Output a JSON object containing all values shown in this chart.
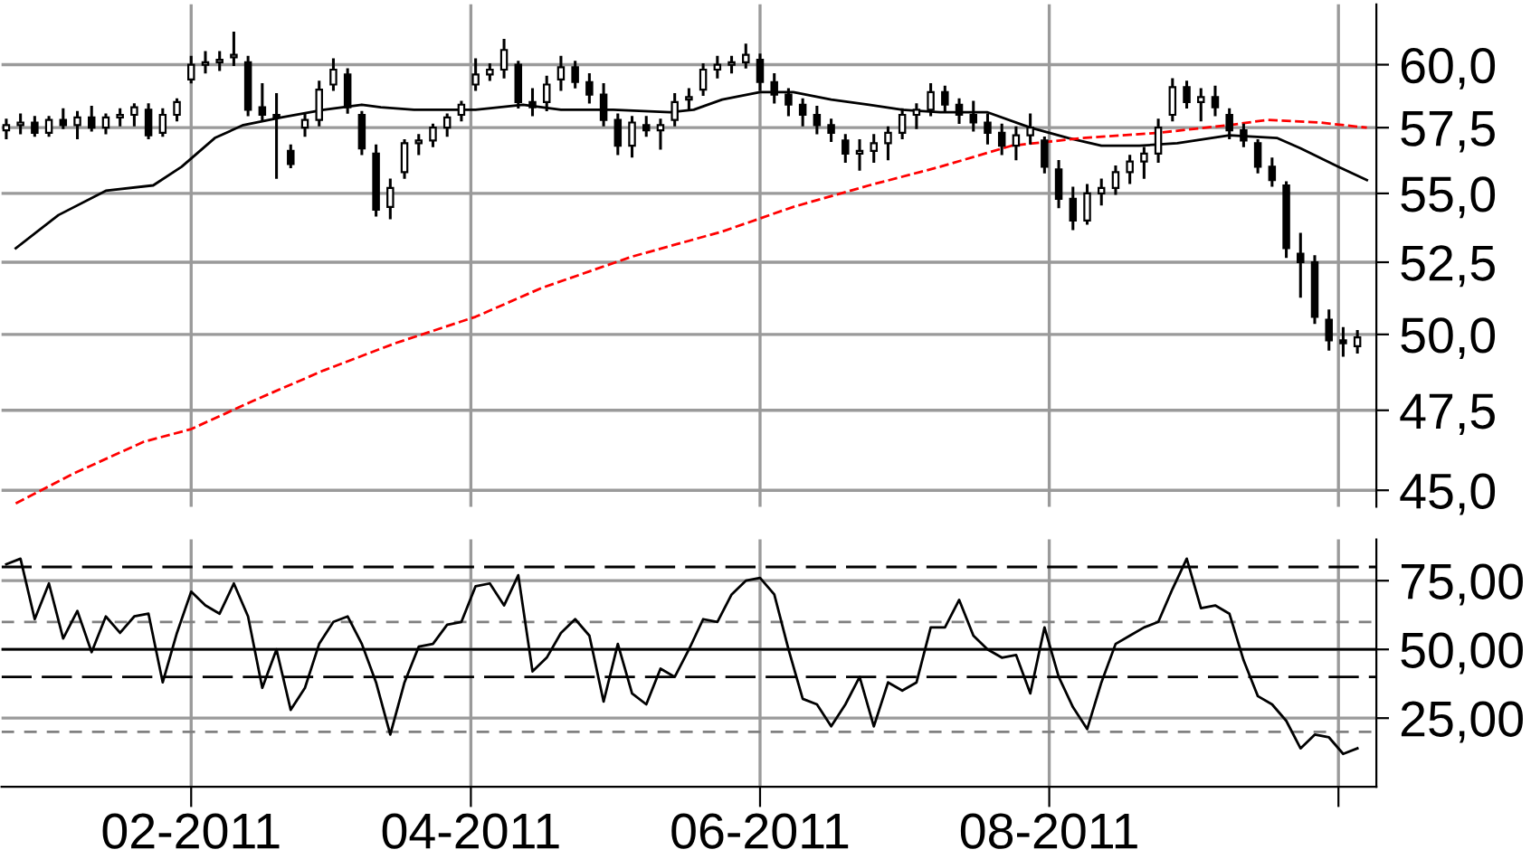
{
  "chart_data": [
    {
      "type": "candlestick",
      "log": true,
      "grid": true,
      "tick_labels": "y",
      "color": "#000000",
      "xlim": [
        "2010-12-23",
        "2011-10-09"
      ],
      "xticks": [
        {
          "value": "2011-02-01",
          "label": null
        },
        {
          "value": "2011-04-01",
          "label": null
        },
        {
          "value": "2011-06-01",
          "label": null
        },
        {
          "value": "2011-08-01",
          "label": null
        },
        {
          "value": "2011-10-01",
          "label": null
        }
      ],
      "ylim": [
        44.5,
        62.5
      ],
      "yticks": [
        {
          "value": 45,
          "label": "45,0"
        },
        {
          "value": 47.5,
          "label": "47,5"
        },
        {
          "value": 50,
          "label": "50,0"
        },
        {
          "value": 52.5,
          "label": "52,5"
        },
        {
          "value": 55,
          "label": "55,0"
        },
        {
          "value": 57.5,
          "label": "57,5"
        },
        {
          "value": 60,
          "label": "60,0"
        }
      ],
      "x": [
        "2010-12-24",
        "2010-12-27",
        "2010-12-30",
        "2011-01-02",
        "2011-01-05",
        "2011-01-08",
        "2011-01-11",
        "2011-01-14",
        "2011-01-17",
        "2011-01-20",
        "2011-01-23",
        "2011-01-26",
        "2011-01-29",
        "2011-02-01",
        "2011-02-04",
        "2011-02-07",
        "2011-02-10",
        "2011-02-13",
        "2011-02-16",
        "2011-02-19",
        "2011-02-22",
        "2011-02-25",
        "2011-02-28",
        "2011-03-03",
        "2011-03-06",
        "2011-03-09",
        "2011-03-12",
        "2011-03-15",
        "2011-03-18",
        "2011-03-21",
        "2011-03-24",
        "2011-03-27",
        "2011-03-30",
        "2011-04-02",
        "2011-04-05",
        "2011-04-08",
        "2011-04-11",
        "2011-04-14",
        "2011-04-17",
        "2011-04-20",
        "2011-04-23",
        "2011-04-26",
        "2011-04-29",
        "2011-05-02",
        "2011-05-05",
        "2011-05-08",
        "2011-05-11",
        "2011-05-14",
        "2011-05-17",
        "2011-05-20",
        "2011-05-23",
        "2011-05-26",
        "2011-05-29",
        "2011-06-01",
        "2011-06-04",
        "2011-06-07",
        "2011-06-10",
        "2011-06-13",
        "2011-06-16",
        "2011-06-19",
        "2011-06-22",
        "2011-06-25",
        "2011-06-28",
        "2011-07-01",
        "2011-07-04",
        "2011-07-07",
        "2011-07-10",
        "2011-07-13",
        "2011-07-16",
        "2011-07-19",
        "2011-07-22",
        "2011-07-25",
        "2011-07-28",
        "2011-07-31",
        "2011-08-03",
        "2011-08-06",
        "2011-08-09",
        "2011-08-12",
        "2011-08-15",
        "2011-08-18",
        "2011-08-21",
        "2011-08-24",
        "2011-08-27",
        "2011-08-30",
        "2011-09-02",
        "2011-09-05",
        "2011-09-08",
        "2011-09-11",
        "2011-09-14",
        "2011-09-17",
        "2011-09-20",
        "2011-09-23",
        "2011-09-26",
        "2011-09-29",
        "2011-10-02",
        "2011-10-05"
      ],
      "ohlc": [
        [
          57.4,
          57.8,
          57.1,
          57.6
        ],
        [
          57.6,
          58.0,
          57.3,
          57.7
        ],
        [
          57.7,
          57.9,
          57.2,
          57.3
        ],
        [
          57.3,
          57.9,
          57.2,
          57.8
        ],
        [
          57.8,
          58.2,
          57.5,
          57.6
        ],
        [
          57.6,
          58.1,
          57.1,
          57.9
        ],
        [
          57.9,
          58.3,
          57.4,
          57.5
        ],
        [
          57.5,
          58.0,
          57.3,
          57.9
        ],
        [
          57.9,
          58.2,
          57.6,
          58.0
        ],
        [
          58.0,
          58.4,
          57.6,
          58.3
        ],
        [
          58.2,
          58.4,
          57.1,
          57.2
        ],
        [
          57.3,
          58.2,
          57.2,
          58.0
        ],
        [
          58.0,
          58.6,
          57.8,
          58.5
        ],
        [
          59.4,
          60.3,
          59.3,
          60.0
        ],
        [
          60.0,
          60.5,
          59.7,
          60.1
        ],
        [
          60.1,
          60.5,
          59.8,
          60.2
        ],
        [
          60.3,
          61.3,
          60.0,
          60.4
        ],
        [
          60.1,
          60.3,
          58.0,
          58.2
        ],
        [
          58.3,
          59.2,
          57.8,
          58.0
        ],
        [
          58.0,
          58.8,
          55.6,
          57.9
        ],
        [
          56.6,
          56.8,
          56.0,
          56.1
        ],
        [
          57.5,
          58.0,
          57.2,
          57.8
        ],
        [
          57.8,
          59.3,
          57.6,
          59.0
        ],
        [
          59.2,
          60.2,
          59.0,
          59.8
        ],
        [
          59.6,
          59.8,
          58.1,
          58.3
        ],
        [
          58.0,
          58.1,
          56.5,
          56.7
        ],
        [
          56.5,
          56.8,
          54.2,
          54.4
        ],
        [
          54.5,
          55.5,
          54.1,
          55.2
        ],
        [
          55.8,
          57.0,
          55.6,
          56.9
        ],
        [
          56.9,
          57.2,
          56.5,
          57.0
        ],
        [
          57.0,
          57.6,
          56.8,
          57.5
        ],
        [
          57.5,
          58.0,
          57.2,
          57.9
        ],
        [
          58.0,
          58.5,
          57.8,
          58.4
        ],
        [
          59.2,
          60.2,
          59.0,
          59.6
        ],
        [
          59.6,
          60.0,
          59.4,
          59.8
        ],
        [
          59.8,
          61.0,
          59.5,
          60.6
        ],
        [
          60.0,
          60.1,
          58.3,
          58.5
        ],
        [
          58.5,
          59.0,
          58.0,
          58.3
        ],
        [
          58.5,
          59.5,
          58.2,
          59.2
        ],
        [
          59.4,
          60.3,
          59.0,
          59.9
        ],
        [
          59.9,
          60.1,
          59.1,
          59.3
        ],
        [
          59.3,
          59.6,
          58.5,
          58.8
        ],
        [
          58.8,
          59.2,
          57.6,
          57.8
        ],
        [
          57.8,
          58.0,
          56.5,
          56.8
        ],
        [
          56.8,
          57.9,
          56.4,
          57.7
        ],
        [
          57.6,
          57.9,
          57.2,
          57.4
        ],
        [
          57.4,
          57.8,
          56.7,
          57.6
        ],
        [
          57.8,
          58.8,
          57.6,
          58.5
        ],
        [
          58.6,
          59.0,
          58.2,
          58.7
        ],
        [
          59.0,
          60.0,
          58.8,
          59.8
        ],
        [
          59.8,
          60.3,
          59.5,
          60.0
        ],
        [
          60.0,
          60.3,
          59.7,
          60.1
        ],
        [
          60.1,
          60.8,
          59.9,
          60.4
        ],
        [
          60.2,
          60.4,
          59.0,
          59.3
        ],
        [
          59.3,
          59.6,
          58.5,
          58.8
        ],
        [
          58.8,
          59.0,
          58.0,
          58.4
        ],
        [
          58.4,
          58.6,
          57.6,
          58.0
        ],
        [
          58.0,
          58.3,
          57.3,
          57.6
        ],
        [
          57.6,
          57.8,
          57.0,
          57.3
        ],
        [
          57.0,
          57.2,
          56.2,
          56.5
        ],
        [
          56.5,
          57.0,
          55.9,
          56.6
        ],
        [
          56.6,
          57.2,
          56.2,
          56.9
        ],
        [
          56.9,
          57.5,
          56.3,
          57.3
        ],
        [
          57.3,
          58.2,
          57.1,
          58.0
        ],
        [
          58.0,
          58.4,
          57.5,
          58.2
        ],
        [
          58.2,
          59.2,
          58.0,
          58.9
        ],
        [
          58.9,
          59.1,
          58.2,
          58.4
        ],
        [
          58.4,
          58.6,
          57.7,
          58.0
        ],
        [
          58.0,
          58.5,
          57.4,
          57.7
        ],
        [
          57.7,
          58.0,
          56.9,
          57.3
        ],
        [
          57.3,
          57.6,
          56.5,
          56.8
        ],
        [
          56.8,
          57.5,
          56.3,
          57.2
        ],
        [
          57.2,
          58.0,
          56.9,
          57.5
        ],
        [
          57.0,
          57.1,
          55.8,
          56.0
        ],
        [
          55.9,
          56.2,
          54.5,
          54.8
        ],
        [
          54.8,
          55.2,
          53.7,
          54.0
        ],
        [
          54.0,
          55.3,
          53.9,
          55.0
        ],
        [
          55.0,
          55.5,
          54.6,
          55.2
        ],
        [
          55.2,
          56.0,
          55.0,
          55.8
        ],
        [
          55.8,
          56.4,
          55.4,
          56.2
        ],
        [
          56.2,
          56.7,
          55.6,
          56.5
        ],
        [
          56.5,
          57.8,
          56.2,
          57.5
        ],
        [
          58.0,
          59.4,
          57.8,
          59.1
        ],
        [
          59.1,
          59.3,
          58.3,
          58.5
        ],
        [
          58.5,
          59.0,
          57.8,
          58.7
        ],
        [
          58.7,
          59.1,
          58.0,
          58.3
        ],
        [
          58.0,
          58.2,
          57.1,
          57.4
        ],
        [
          57.4,
          57.6,
          56.8,
          57.0
        ],
        [
          56.9,
          57.0,
          55.8,
          56.0
        ],
        [
          56.0,
          56.3,
          55.3,
          55.5
        ],
        [
          55.3,
          55.4,
          52.7,
          53.0
        ],
        [
          52.8,
          53.5,
          51.3,
          52.5
        ],
        [
          52.5,
          52.7,
          50.4,
          50.6
        ],
        [
          50.5,
          50.8,
          49.5,
          49.8
        ],
        [
          49.8,
          50.2,
          49.3,
          49.7
        ],
        [
          49.6,
          50.1,
          49.4,
          49.9
        ]
      ],
      "series": [
        {
          "type": "line",
          "color": "#000000",
          "line_style": "solid",
          "x": [
            "2010-12-26",
            "2011-01-04",
            "2011-01-14",
            "2011-01-24",
            "2011-01-30",
            "2011-02-06",
            "2011-02-12",
            "2011-02-20",
            "2011-03-01",
            "2011-03-09",
            "2011-03-13",
            "2011-03-20",
            "2011-04-02",
            "2011-04-12",
            "2011-04-20",
            "2011-05-01",
            "2011-05-13",
            "2011-05-18",
            "2011-05-24",
            "2011-06-01",
            "2011-06-08",
            "2011-06-16",
            "2011-06-24",
            "2011-07-01",
            "2011-07-09",
            "2011-07-19",
            "2011-07-28",
            "2011-08-05",
            "2011-08-12",
            "2011-08-20",
            "2011-08-28",
            "2011-09-08",
            "2011-09-18",
            "2011-09-23",
            "2011-10-01",
            "2011-10-07"
          ],
          "values": [
            53.0,
            54.2,
            55.1,
            55.3,
            56.0,
            57.1,
            57.6,
            57.9,
            58.2,
            58.4,
            58.3,
            58.2,
            58.2,
            58.4,
            58.2,
            58.2,
            58.1,
            58.2,
            58.6,
            58.9,
            58.9,
            58.6,
            58.4,
            58.2,
            58.1,
            58.1,
            57.5,
            57.1,
            56.8,
            56.8,
            56.9,
            57.2,
            57.1,
            56.7,
            56.0,
            55.5
          ]
        },
        {
          "type": "line",
          "color": "#ff0000",
          "line_style": "dashed",
          "x": [
            "2010-12-26",
            "2011-01-07",
            "2011-01-22",
            "2011-02-01",
            "2011-02-14",
            "2011-03-01",
            "2011-03-16",
            "2011-04-02",
            "2011-04-16",
            "2011-05-05",
            "2011-05-24",
            "2011-06-08",
            "2011-06-24",
            "2011-07-09",
            "2011-07-24",
            "2011-08-08",
            "2011-08-24",
            "2011-09-08",
            "2011-09-16",
            "2011-09-27",
            "2011-10-07"
          ],
          "values": [
            44.6,
            45.5,
            46.5,
            46.9,
            47.8,
            48.8,
            49.7,
            50.6,
            51.6,
            52.7,
            53.6,
            54.5,
            55.3,
            56.0,
            56.8,
            57.1,
            57.3,
            57.6,
            57.8,
            57.7,
            57.5
          ]
        }
      ]
    },
    {
      "type": "line",
      "grid": true,
      "color": "#000000",
      "xlim": [
        "2010-12-23",
        "2011-10-09"
      ],
      "xticks": [
        {
          "value": "2011-02-01",
          "label": "02-2011"
        },
        {
          "value": "2011-04-01",
          "label": "04-2011"
        },
        {
          "value": "2011-06-01",
          "label": "06-2011"
        },
        {
          "value": "2011-08-01",
          "label": "08-2011"
        },
        {
          "value": "2011-10-01",
          "label": null
        }
      ],
      "ylim": [
        0,
        90
      ],
      "yticks": [
        {
          "value": 25,
          "label": "25,00"
        },
        {
          "value": 50,
          "label": "50,00"
        },
        {
          "value": 75,
          "label": "75,00"
        }
      ],
      "ref_lines": [
        {
          "axis": "y",
          "value": 80,
          "color": "#000000",
          "line_style": "dashed"
        },
        {
          "axis": "y",
          "value": 60,
          "color": "#808080",
          "line_style": "dashed"
        },
        {
          "axis": "y",
          "value": 50,
          "color": "#000000",
          "line_style": "solid"
        },
        {
          "axis": "y",
          "value": 40,
          "color": "#000000",
          "line_style": "dashed"
        },
        {
          "axis": "y",
          "value": 20,
          "color": "#808080",
          "line_style": "dashed"
        }
      ],
      "x": [
        "2010-12-24",
        "2010-12-27",
        "2010-12-30",
        "2011-01-02",
        "2011-01-05",
        "2011-01-08",
        "2011-01-11",
        "2011-01-14",
        "2011-01-17",
        "2011-01-20",
        "2011-01-23",
        "2011-01-26",
        "2011-01-29",
        "2011-02-01",
        "2011-02-04",
        "2011-02-07",
        "2011-02-10",
        "2011-02-13",
        "2011-02-16",
        "2011-02-19",
        "2011-02-22",
        "2011-02-25",
        "2011-02-28",
        "2011-03-03",
        "2011-03-06",
        "2011-03-09",
        "2011-03-12",
        "2011-03-15",
        "2011-03-18",
        "2011-03-21",
        "2011-03-24",
        "2011-03-27",
        "2011-03-30",
        "2011-04-02",
        "2011-04-05",
        "2011-04-08",
        "2011-04-11",
        "2011-04-14",
        "2011-04-17",
        "2011-04-20",
        "2011-04-23",
        "2011-04-26",
        "2011-04-29",
        "2011-05-02",
        "2011-05-05",
        "2011-05-08",
        "2011-05-11",
        "2011-05-14",
        "2011-05-17",
        "2011-05-20",
        "2011-05-23",
        "2011-05-26",
        "2011-05-29",
        "2011-06-01",
        "2011-06-04",
        "2011-06-07",
        "2011-06-10",
        "2011-06-13",
        "2011-06-16",
        "2011-06-19",
        "2011-06-22",
        "2011-06-25",
        "2011-06-28",
        "2011-07-01",
        "2011-07-04",
        "2011-07-07",
        "2011-07-10",
        "2011-07-13",
        "2011-07-16",
        "2011-07-19",
        "2011-07-22",
        "2011-07-25",
        "2011-07-28",
        "2011-07-31",
        "2011-08-03",
        "2011-08-06",
        "2011-08-09",
        "2011-08-12",
        "2011-08-15",
        "2011-08-18",
        "2011-08-21",
        "2011-08-24",
        "2011-08-27",
        "2011-08-30",
        "2011-09-02",
        "2011-09-05",
        "2011-09-08",
        "2011-09-11",
        "2011-09-14",
        "2011-09-17",
        "2011-09-20",
        "2011-09-23",
        "2011-09-26",
        "2011-09-29",
        "2011-10-02",
        "2011-10-05"
      ],
      "values": [
        81,
        83,
        61,
        74,
        54,
        64,
        49,
        62,
        56,
        62,
        63,
        38,
        56,
        71,
        66,
        63,
        74,
        62,
        36,
        50,
        28,
        36,
        52,
        60,
        62,
        52,
        38,
        19,
        38,
        51,
        52,
        59,
        60,
        73,
        74,
        66,
        77,
        42,
        47,
        56,
        61,
        55,
        31,
        52,
        34,
        30,
        43,
        40,
        50,
        61,
        60,
        70,
        75,
        76,
        70,
        50,
        32,
        30,
        22,
        30,
        40,
        22,
        38,
        35,
        38,
        58,
        58,
        68,
        55,
        50,
        47,
        48,
        34,
        58,
        40,
        29,
        21,
        38,
        52,
        55,
        58,
        60,
        72,
        83,
        65,
        66,
        63,
        46,
        33,
        30,
        24,
        14,
        19,
        18,
        12,
        14
      ]
    }
  ]
}
